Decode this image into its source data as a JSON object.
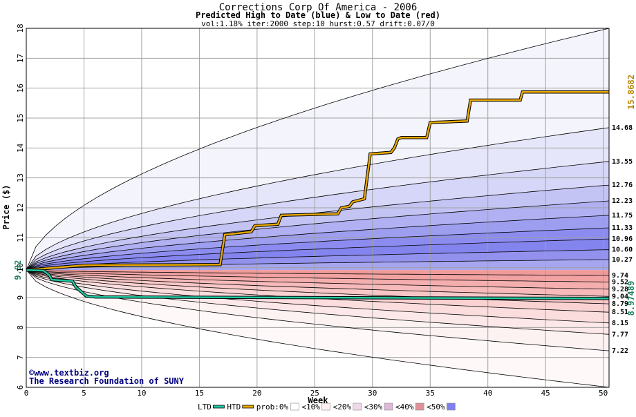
{
  "chart_data": {
    "type": "line",
    "title": "Corrections Corp Of America - 2006",
    "subtitle": "Predicted High to Date (blue) &  Low to Date (red)",
    "params": "vol:1.18% iter:2000 step:10 hurst:0.57 drift:0.07/0",
    "xlabel": "Week",
    "ylabel": "Price ($)",
    "xlim": [
      0,
      50.5
    ],
    "ylim": [
      6,
      18
    ],
    "x_ticks": [
      0,
      5,
      10,
      15,
      20,
      25,
      30,
      35,
      40,
      45,
      50
    ],
    "y_ticks": [
      6,
      7,
      8,
      9,
      10,
      11,
      12,
      13,
      14,
      15,
      16,
      17,
      18
    ],
    "grid": true,
    "start_price": 9.92,
    "start_price_label": "9.92",
    "upper_band_levels": [
      14.68,
      13.55,
      12.76,
      12.23,
      11.75,
      11.33,
      10.96,
      10.6,
      10.27
    ],
    "upper_band_labels": [
      "14.68",
      "13.55",
      "12.76",
      "12.23",
      "11.75",
      "11.33",
      "10.96",
      "10.60",
      "10.27"
    ],
    "lower_band_levels": [
      9.74,
      9.52,
      9.28,
      9.04,
      8.79,
      8.51,
      8.15,
      7.77,
      7.22
    ],
    "lower_band_labels": [
      "9.74",
      "9.52",
      "9.28",
      "9.04",
      "8.79",
      "8.51",
      "8.15",
      "7.77",
      "7.22"
    ],
    "outer_upper_end": 18,
    "outer_lower_end": 6,
    "htd_series": {
      "name": "HTD",
      "color": "#e8a800",
      "end_value": 15.8682,
      "end_label": "15.8682",
      "x": [
        0,
        1,
        5,
        16.8,
        17.2,
        19.5,
        19.8,
        21.8,
        22.1,
        27,
        27.3,
        28,
        28.3,
        29.3,
        29.8,
        31.6,
        31.9,
        32.2,
        32.5,
        34.7,
        35,
        38.2,
        38.5,
        42.8,
        43,
        50.5
      ],
      "y": [
        9.94,
        9.95,
        10.08,
        10.1,
        11.1,
        11.2,
        11.4,
        11.45,
        11.75,
        11.8,
        12.0,
        12.05,
        12.2,
        12.3,
        13.8,
        13.85,
        14.0,
        14.3,
        14.35,
        14.35,
        14.85,
        14.9,
        15.6,
        15.6,
        15.87,
        15.87
      ]
    },
    "ltd_series": {
      "name": "LTD",
      "color": "#20c8a0",
      "end_value": 8.97489,
      "end_label": "8.97489",
      "x": [
        0,
        1.5,
        2.0,
        2.2,
        4.0,
        4.3,
        5.2,
        6,
        50.5
      ],
      "y": [
        9.92,
        9.9,
        9.75,
        9.6,
        9.55,
        9.35,
        9.05,
        9.02,
        8.97
      ]
    },
    "legend": {
      "position": "bottom",
      "items": [
        {
          "label": "LTD",
          "color": "#20c8a0"
        },
        {
          "label": "HTD",
          "color": "#e8a800"
        },
        {
          "label": "prob:0%",
          "color": "#ffffff"
        },
        {
          "label": "<10%",
          "color": "#fcf0f0"
        },
        {
          "label": "<20%",
          "color": "#f0d8e8"
        },
        {
          "label": "<30%",
          "color": "#e0b8d8"
        },
        {
          "label": "<40%",
          "color": "#e09098"
        },
        {
          "label": "<50%",
          "color": "#8080f0"
        }
      ]
    },
    "watermark_line1": "©www.textbiz.org",
    "watermark_line2": "The Research Foundation of SUNY"
  },
  "colors": {
    "upper_bands": [
      "#f4f4fc",
      "#e6e6fa",
      "#d6d6f8",
      "#c4c4f4",
      "#b0b0f2",
      "#9e9ef0",
      "#8c8cf0",
      "#8484ee",
      "#9292ee",
      "#a6a6f0"
    ],
    "lower_bands": [
      "#f09a9a",
      "#f3a2a2",
      "#f5aeae",
      "#f7baba",
      "#f8c6c6",
      "#fad2d2",
      "#fbdddd",
      "#fce8e8",
      "#fdf2f2",
      "#fef8f8"
    ],
    "outline": "#000000",
    "grid": "#a0a0a0",
    "htd_label": "#b8860b",
    "ltd_label": "#208060",
    "start_label": "#208060",
    "watermark": "#000080"
  }
}
